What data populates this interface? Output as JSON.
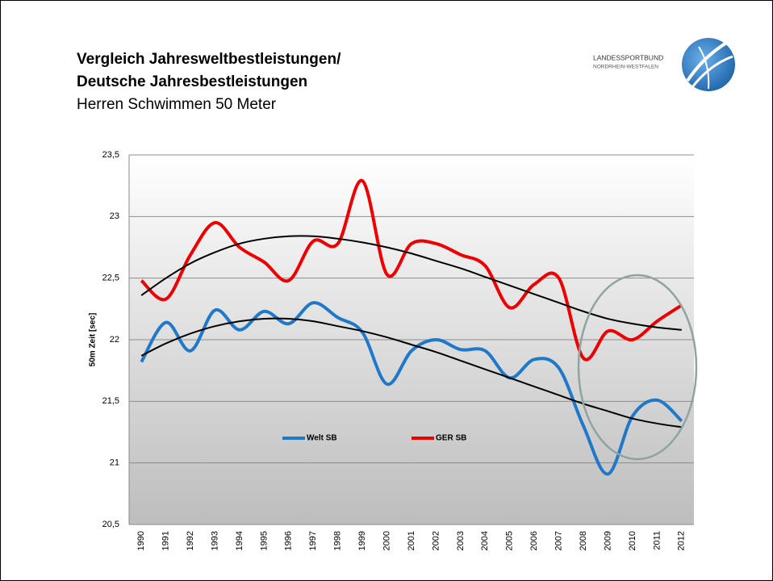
{
  "header": {
    "title_line1": "Vergleich Jahresweltbestleistungen/",
    "title_line2": "Deutsche Jahresbestleistungen",
    "subtitle": "Herren Schwimmen 50 Meter"
  },
  "logo": {
    "line1": "LANDESSPORTBUND",
    "line2": "NORDRHEIN-WESTFALEN"
  },
  "chart_data": {
    "type": "line",
    "ylabel": "50m Zeit [sec]",
    "categories": [
      "1990",
      "1991",
      "1992",
      "1993",
      "1994",
      "1995",
      "1996",
      "1997",
      "1998",
      "1999",
      "2000",
      "2001",
      "2002",
      "2003",
      "2004",
      "2005",
      "2006",
      "2007",
      "2008",
      "2009",
      "2010",
      "2011",
      "2012"
    ],
    "series": [
      {
        "name": "Welt SB",
        "color": "#1f78c8",
        "values": [
          21.82,
          22.14,
          21.91,
          22.24,
          22.08,
          22.23,
          22.13,
          22.3,
          22.18,
          22.06,
          21.64,
          21.91,
          22.0,
          21.92,
          21.91,
          21.69,
          21.84,
          21.77,
          21.3,
          20.91,
          21.38,
          21.51,
          21.34
        ]
      },
      {
        "name": "GER SB",
        "color": "#ee0000",
        "values": [
          22.48,
          22.33,
          22.69,
          22.95,
          22.75,
          22.63,
          22.48,
          22.8,
          22.78,
          23.29,
          22.53,
          22.78,
          22.78,
          22.69,
          22.6,
          22.26,
          22.45,
          22.5,
          21.85,
          22.07,
          22.0,
          22.15,
          22.28
        ]
      }
    ],
    "trendlines": [
      {
        "color": "#000000",
        "values": [
          21.87,
          21.97,
          22.05,
          22.11,
          22.15,
          22.17,
          22.17,
          22.15,
          22.11,
          22.07,
          22.02,
          21.96,
          21.9,
          21.83,
          21.76,
          21.69,
          21.62,
          21.55,
          21.48,
          21.42,
          21.36,
          21.32,
          21.29
        ]
      },
      {
        "color": "#000000",
        "values": [
          22.36,
          22.5,
          22.62,
          22.71,
          22.78,
          22.82,
          22.84,
          22.84,
          22.82,
          22.79,
          22.75,
          22.7,
          22.64,
          22.58,
          22.51,
          22.44,
          22.37,
          22.3,
          22.23,
          22.17,
          22.13,
          22.1,
          22.08
        ]
      }
    ],
    "ylim": [
      20.5,
      23.5
    ],
    "yticks": [
      {
        "value": 20.5,
        "label": "20,5"
      },
      21,
      {
        "value": 21.5,
        "label": "21,5"
      },
      22,
      {
        "value": 22.5,
        "label": "22,5"
      },
      23,
      {
        "value": 23.5,
        "label": "23,5"
      }
    ],
    "grid": true,
    "legend": "bottom"
  }
}
